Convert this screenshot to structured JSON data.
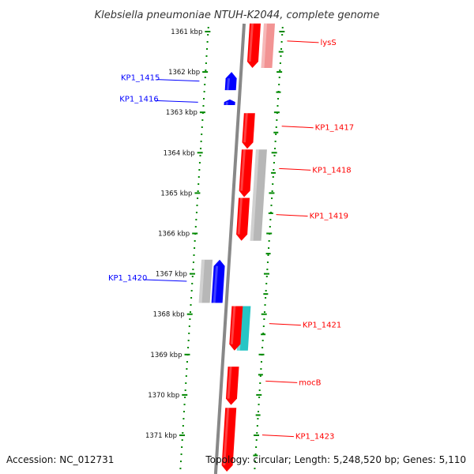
{
  "title": "Klebsiella pneumoniae NTUH-K2044, complete genome",
  "footer": {
    "accession": "Accession: NC_012731",
    "summary": "Topology: circular; Length: 5,248,520 bp; Genes: 5,110"
  },
  "colors": {
    "plus_strand": "#0000ff",
    "minus_strand": "#ff0000",
    "pseudo": "#aaaaaa",
    "rna": "#00bbbb",
    "backbone": "#888888",
    "dots": "#008800"
  },
  "ticks": [
    {
      "kbp": 1361,
      "label": "1361 kbp"
    },
    {
      "kbp": 1362,
      "label": "1362 kbp"
    },
    {
      "kbp": 1363,
      "label": "1363 kbp"
    },
    {
      "kbp": 1364,
      "label": "1364 kbp"
    },
    {
      "kbp": 1365,
      "label": "1365 kbp"
    },
    {
      "kbp": 1366,
      "label": "1366 kbp"
    },
    {
      "kbp": 1367,
      "label": "1367 kbp"
    },
    {
      "kbp": 1368,
      "label": "1368 kbp"
    },
    {
      "kbp": 1369,
      "label": "1369 kbp"
    },
    {
      "kbp": 1370,
      "label": "1370 kbp"
    },
    {
      "kbp": 1371,
      "label": "1371 kbp"
    }
  ],
  "genes_plus": [
    {
      "name": "KP1_1415",
      "start_kbp": 1362.0,
      "end_kbp": 1362.45
    },
    {
      "name": "KP1_1416",
      "start_kbp": 1362.68,
      "end_kbp": 1362.82
    },
    {
      "name": "KP1_1420",
      "start_kbp": 1366.65,
      "end_kbp": 1367.72
    }
  ],
  "genes_minus": [
    {
      "name": "lysS",
      "start_kbp": 1360.8,
      "end_kbp": 1361.9
    },
    {
      "name": "KP1_1417",
      "start_kbp": 1363.02,
      "end_kbp": 1363.9
    },
    {
      "name": "KP1_1418",
      "start_kbp": 1363.92,
      "end_kbp": 1365.1
    },
    {
      "name": "KP1_1419",
      "start_kbp": 1365.12,
      "end_kbp": 1366.18
    },
    {
      "name": "KP1_1421",
      "start_kbp": 1367.8,
      "end_kbp": 1368.9
    },
    {
      "name": "mocB",
      "start_kbp": 1369.3,
      "end_kbp": 1370.25
    },
    {
      "name": "KP1_1423",
      "start_kbp": 1370.32,
      "end_kbp": 1371.9
    }
  ],
  "features_grey": [
    {
      "start_kbp": 1360.8,
      "end_kbp": 1361.9
    },
    {
      "start_kbp": 1363.92,
      "end_kbp": 1366.18
    },
    {
      "start_kbp": 1366.65,
      "end_kbp": 1367.72
    }
  ],
  "features_rna": [
    {
      "start_kbp": 1367.8,
      "end_kbp": 1368.9
    }
  ]
}
